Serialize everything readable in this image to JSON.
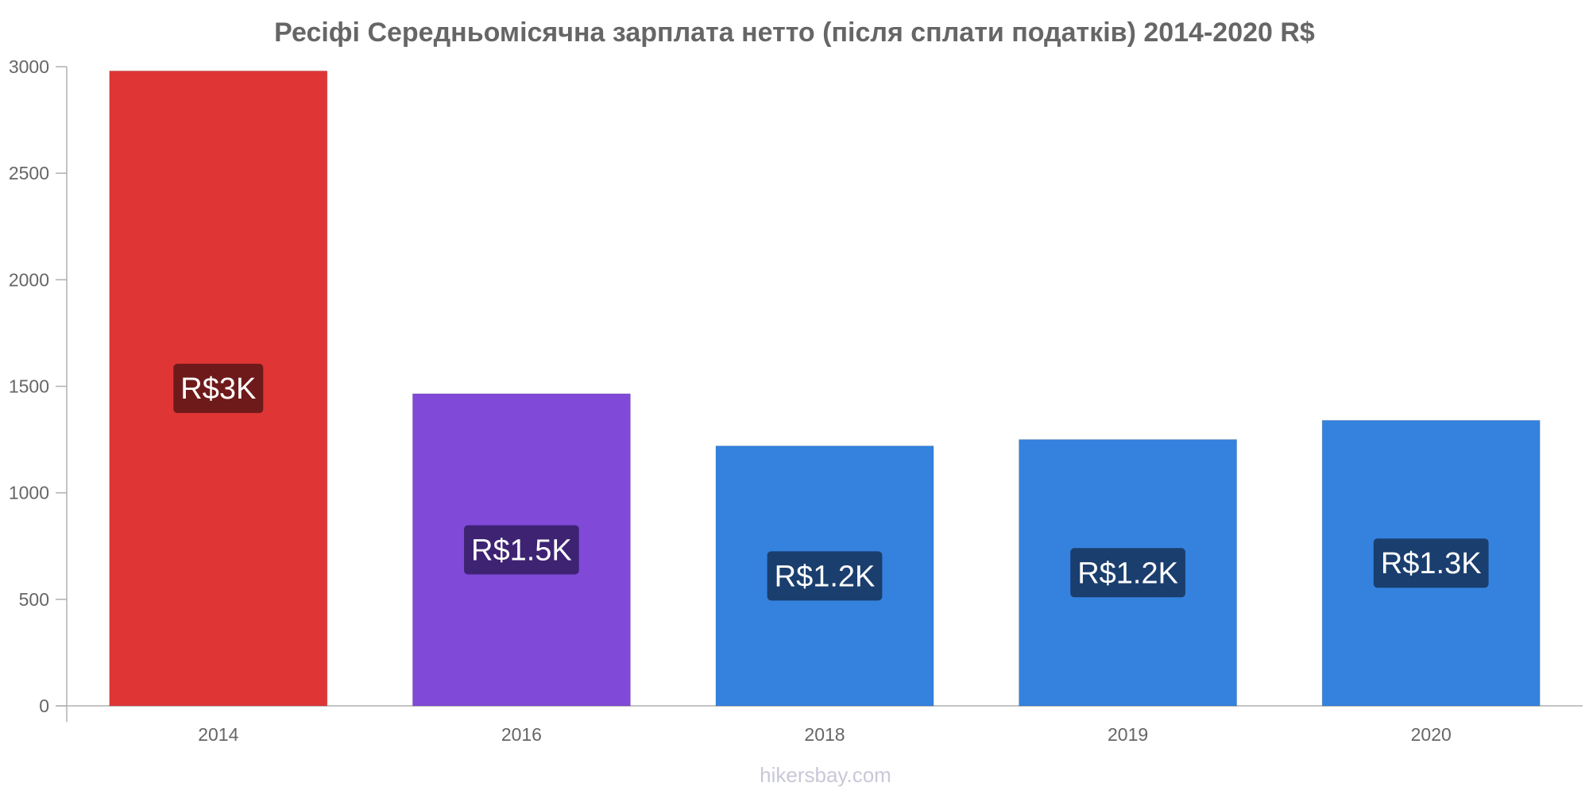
{
  "chart_data": {
    "type": "bar",
    "title": "Ресіфі Середньомісячна зарплата нетто (після сплати податків) 2014-2020 R$",
    "categories": [
      "2014",
      "2016",
      "2018",
      "2019",
      "2020"
    ],
    "values": [
      2980,
      1465,
      1220,
      1250,
      1340
    ],
    "data_labels": [
      "R$3K",
      "R$1.5K",
      "R$1.2K",
      "R$1.2K",
      "R$1.3K"
    ],
    "bar_colors": [
      "#e03535",
      "#8049d8",
      "#3482de",
      "#3482de",
      "#3482de"
    ],
    "label_bg_colors": [
      "#6e1a1a",
      "#3e2373",
      "#1a3e6e",
      "#1a3e6e",
      "#1a3e6e"
    ],
    "yticks": [
      0,
      500,
      1000,
      1500,
      2000,
      2500,
      3000
    ],
    "ylim": [
      0,
      3000
    ],
    "grid": false,
    "legend": "none",
    "xlabel": "",
    "ylabel": ""
  },
  "watermark": "hikersbay.com"
}
